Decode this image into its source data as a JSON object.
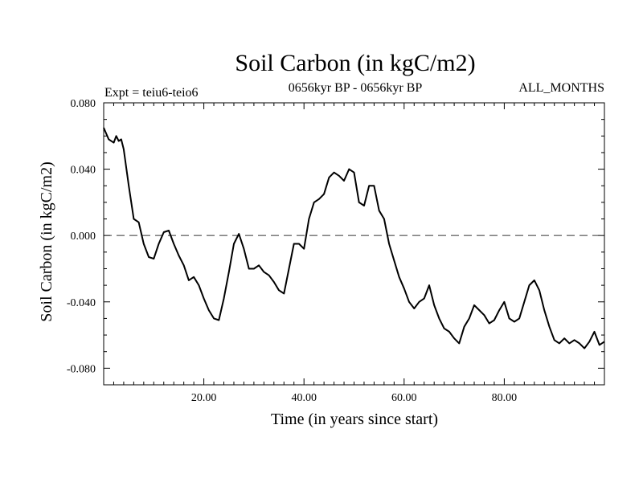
{
  "chart_data": {
    "type": "line",
    "title": "Soil Carbon (in kgC/m2)",
    "subtitle": "0656kyr BP - 0656kyr BP",
    "expt_label": "Expt = teiu6-teio6",
    "months_label": "ALL_MONTHS",
    "xlabel": "Time (in years since start)",
    "ylabel": "Soil Carbon (in kgC/m2)",
    "xlim": [
      0,
      100
    ],
    "ylim": [
      -0.09,
      0.08
    ],
    "x_ticks": [
      20,
      40,
      60,
      80
    ],
    "x_tick_labels": [
      "20.00",
      "40.00",
      "60.00",
      "80.00"
    ],
    "y_ticks": [
      0.08,
      0.04,
      0.0,
      -0.04,
      -0.08
    ],
    "y_tick_labels": [
      "0.080",
      "0.040",
      "0.000",
      "-0.040",
      "-0.080"
    ],
    "zero_line": 0.0,
    "series": [
      {
        "name": "teiu6-teio6",
        "x": [
          0,
          1,
          2,
          2.5,
          3,
          3.5,
          4,
          5,
          6,
          7,
          8,
          9,
          10,
          11,
          12,
          13,
          14,
          15,
          16,
          17,
          18,
          19,
          20,
          21,
          22,
          23,
          24,
          25,
          26,
          27,
          28,
          29,
          30,
          31,
          32,
          33,
          34,
          35,
          36,
          37,
          38,
          39,
          40,
          41,
          42,
          43,
          44,
          45,
          46,
          47,
          48,
          49,
          50,
          51,
          52,
          53,
          54,
          55,
          56,
          57,
          58,
          59,
          60,
          61,
          62,
          63,
          64,
          65,
          66,
          67,
          68,
          69,
          70,
          71,
          72,
          73,
          74,
          75,
          76,
          77,
          78,
          79,
          80,
          81,
          82,
          83,
          84,
          85,
          86,
          87,
          88,
          89,
          90,
          91,
          92,
          93,
          94,
          95,
          96,
          97,
          98,
          99,
          100
        ],
        "values": [
          0.065,
          0.058,
          0.056,
          0.06,
          0.057,
          0.058,
          0.052,
          0.03,
          0.01,
          0.008,
          -0.005,
          -0.013,
          -0.014,
          -0.005,
          0.002,
          0.003,
          -0.005,
          -0.012,
          -0.018,
          -0.027,
          -0.025,
          -0.03,
          -0.038,
          -0.045,
          -0.05,
          -0.051,
          -0.038,
          -0.022,
          -0.005,
          0.001,
          -0.008,
          -0.02,
          -0.02,
          -0.018,
          -0.022,
          -0.024,
          -0.028,
          -0.033,
          -0.035,
          -0.02,
          -0.005,
          -0.005,
          -0.008,
          0.01,
          0.02,
          0.022,
          0.025,
          0.035,
          0.038,
          0.036,
          0.033,
          0.04,
          0.038,
          0.02,
          0.018,
          0.03,
          0.03,
          0.015,
          0.01,
          -0.005,
          -0.015,
          -0.025,
          -0.032,
          -0.04,
          -0.044,
          -0.04,
          -0.038,
          -0.03,
          -0.042,
          -0.05,
          -0.056,
          -0.058,
          -0.062,
          -0.065,
          -0.055,
          -0.05,
          -0.042,
          -0.045,
          -0.048,
          -0.053,
          -0.051,
          -0.045,
          -0.04,
          -0.05,
          -0.052,
          -0.05,
          -0.04,
          -0.03,
          -0.027,
          -0.033,
          -0.045,
          -0.055,
          -0.063,
          -0.065,
          -0.062,
          -0.065,
          -0.063,
          -0.065,
          -0.068,
          -0.064,
          -0.058,
          -0.066,
          -0.064
        ]
      }
    ]
  }
}
